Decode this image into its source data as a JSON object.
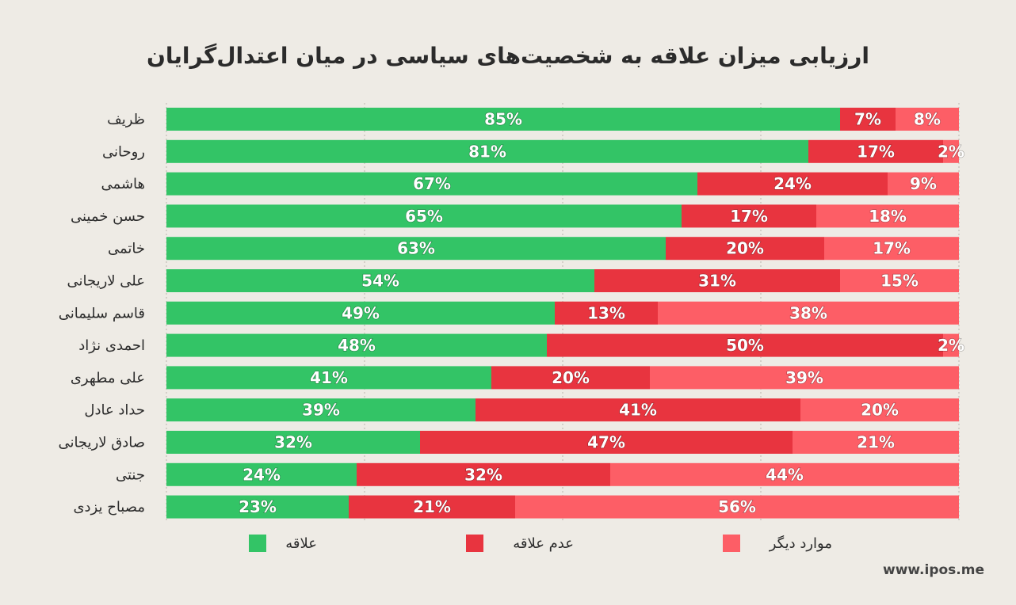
{
  "chart_data": {
    "type": "bar",
    "orientation": "horizontal",
    "stacked": true,
    "title": "ارزیابی میزان علاقه به شخصیت‌های سیاسی در میان اعتدال‌گرایان",
    "categories": [
      "ظریف",
      "روحانی",
      "هاشمی",
      "حسن خمینی",
      "خاتمی",
      "علی لاریجانی",
      "قاسم سلیمانی",
      "احمدی نژاد",
      "علی مطهری",
      "حداد عادل",
      "صادق لاریجانی",
      "جنتی",
      "مصباح یزدی"
    ],
    "series": [
      {
        "name": "علاقه",
        "color": "#33c466",
        "values": [
          85,
          81,
          67,
          65,
          63,
          54,
          49,
          48,
          41,
          39,
          32,
          24,
          23
        ]
      },
      {
        "name": "عدم علاقه",
        "color": "#e8343f",
        "values": [
          7,
          17,
          24,
          17,
          20,
          31,
          13,
          50,
          20,
          41,
          47,
          32,
          21
        ]
      },
      {
        "name": "موارد دیگر",
        "color": "#fd5e66",
        "values": [
          8,
          2,
          9,
          18,
          17,
          15,
          38,
          2,
          39,
          20,
          21,
          44,
          56
        ]
      }
    ],
    "xlim": [
      0,
      100
    ],
    "value_suffix": "%",
    "grid": true,
    "legend_position": "bottom"
  },
  "footer": {
    "website": "www.ipos.me"
  }
}
